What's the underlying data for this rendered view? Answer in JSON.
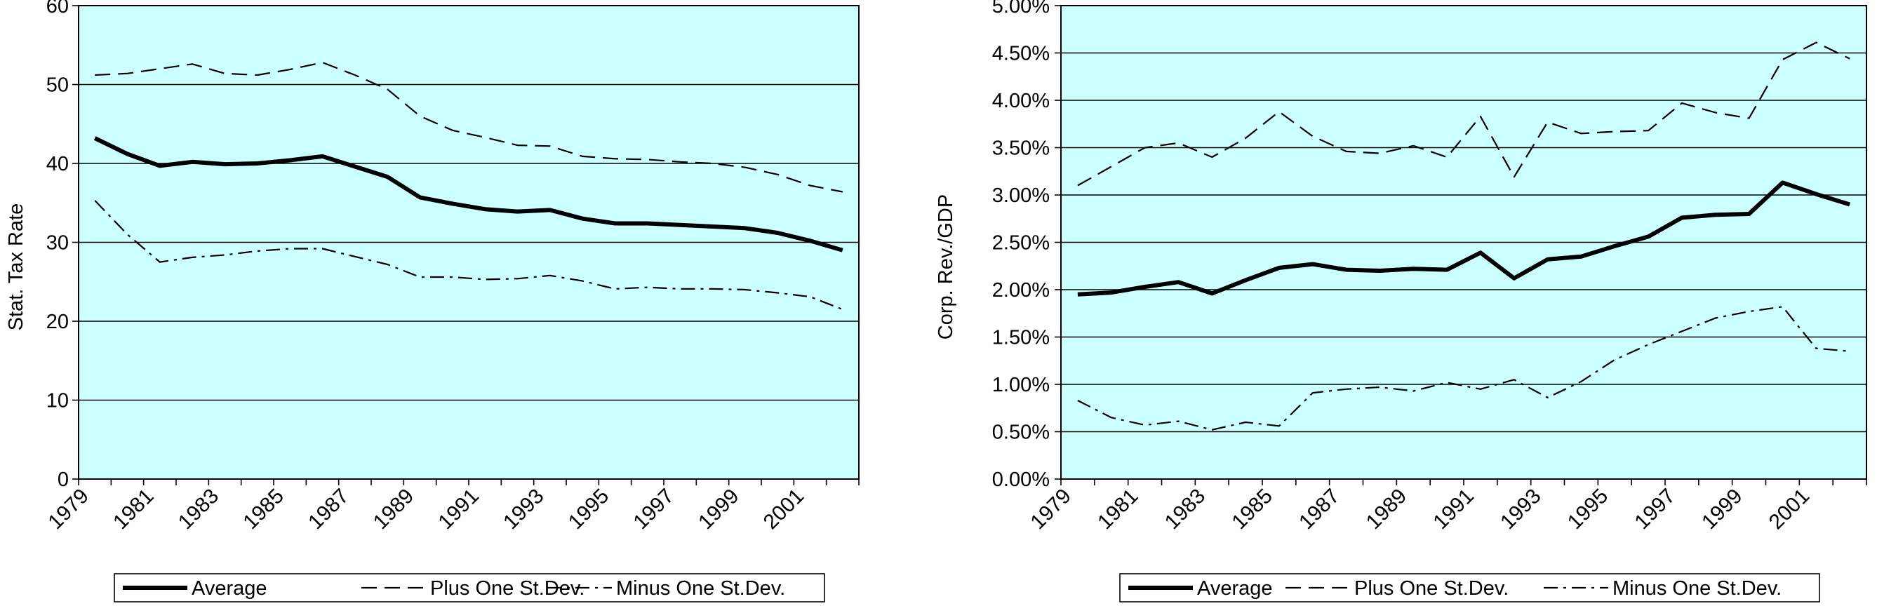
{
  "chart_data": [
    {
      "type": "line",
      "title": "",
      "xlabel": "",
      "ylabel": "Stat. Tax Rate",
      "ylim": [
        0,
        60
      ],
      "yticks": [
        0,
        10,
        20,
        30,
        40,
        50,
        60
      ],
      "ytick_labels": [
        "0",
        "10",
        "20",
        "30",
        "40",
        "50",
        "60"
      ],
      "xlim": [
        1979,
        2003
      ],
      "xticks": [
        1979,
        1981,
        1983,
        1985,
        1987,
        1989,
        1991,
        1993,
        1995,
        1997,
        1999,
        2001
      ],
      "xtick_labels": [
        "1979",
        "1981",
        "1983",
        "1985",
        "1987",
        "1989",
        "1991",
        "1993",
        "1995",
        "1997",
        "1999",
        "2001"
      ],
      "grid": true,
      "plot_bg": "#ccffff",
      "legend_position": "bottom",
      "x": [
        1979.5,
        1980.5,
        1981.5,
        1982.5,
        1983.5,
        1984.5,
        1985.5,
        1986.5,
        1987.5,
        1988.5,
        1989.5,
        1990.5,
        1991.5,
        1992.5,
        1993.5,
        1994.5,
        1995.5,
        1996.5,
        1997.5,
        1998.5,
        1999.5,
        2000.5,
        2001.5,
        2002.5
      ],
      "series": [
        {
          "name": "Average",
          "style": "solid",
          "values": [
            43.2,
            41.2,
            39.7,
            40.2,
            39.9,
            40.0,
            40.4,
            40.9,
            39.6,
            38.3,
            35.7,
            34.9,
            34.2,
            33.9,
            34.1,
            33.0,
            32.4,
            32.4,
            32.2,
            32.0,
            31.8,
            31.2,
            30.2,
            29.0
          ]
        },
        {
          "name": "Plus One St.Dev.",
          "style": "dashed",
          "values": [
            51.2,
            51.4,
            52.0,
            52.6,
            51.4,
            51.2,
            51.9,
            52.8,
            51.2,
            49.4,
            46.0,
            44.2,
            43.3,
            42.3,
            42.2,
            40.9,
            40.6,
            40.5,
            40.2,
            40.0,
            39.5,
            38.6,
            37.2,
            36.4
          ]
        },
        {
          "name": "Minus One St.Dev.",
          "style": "dashdot",
          "values": [
            35.3,
            31.0,
            27.5,
            28.1,
            28.4,
            28.9,
            29.2,
            29.2,
            28.2,
            27.2,
            25.6,
            25.6,
            25.3,
            25.4,
            25.8,
            25.1,
            24.1,
            24.3,
            24.1,
            24.1,
            24.0,
            23.6,
            23.1,
            21.5
          ]
        }
      ]
    },
    {
      "type": "line",
      "title": "",
      "xlabel": "",
      "ylabel": "Corp. Rev./GDP",
      "ylim": [
        0,
        5
      ],
      "yticks": [
        0,
        0.5,
        1,
        1.5,
        2,
        2.5,
        3,
        3.5,
        4,
        4.5,
        5
      ],
      "ytick_labels": [
        "0.00%",
        "0.50%",
        "1.00%",
        "1.50%",
        "2.00%",
        "2.50%",
        "3.00%",
        "3.50%",
        "4.00%",
        "4.50%",
        "5.00%"
      ],
      "xlim": [
        1979,
        2003
      ],
      "xticks": [
        1979,
        1981,
        1983,
        1985,
        1987,
        1989,
        1991,
        1993,
        1995,
        1997,
        1999,
        2001
      ],
      "xtick_labels": [
        "1979",
        "1981",
        "1983",
        "1985",
        "1987",
        "1989",
        "1991",
        "1993",
        "1995",
        "1997",
        "1999",
        "2001"
      ],
      "grid": true,
      "plot_bg": "#ccffff",
      "legend_position": "bottom",
      "x": [
        1979.5,
        1980.5,
        1981.5,
        1982.5,
        1983.5,
        1984.5,
        1985.5,
        1986.5,
        1987.5,
        1988.5,
        1989.5,
        1990.5,
        1991.5,
        1992.5,
        1993.5,
        1994.5,
        1995.5,
        1996.5,
        1997.5,
        1998.5,
        1999.5,
        2000.5,
        2001.5,
        2002.5
      ],
      "series": [
        {
          "name": "Average",
          "style": "solid",
          "values": [
            1.95,
            1.97,
            2.03,
            2.08,
            1.96,
            2.1,
            2.23,
            2.27,
            2.21,
            2.2,
            2.22,
            2.21,
            2.39,
            2.12,
            2.32,
            2.35,
            2.46,
            2.56,
            2.76,
            2.79,
            2.8,
            3.13,
            3.01,
            2.9
          ]
        },
        {
          "name": "Plus One St.Dev.",
          "style": "dashed",
          "values": [
            3.1,
            3.3,
            3.5,
            3.55,
            3.4,
            3.6,
            3.88,
            3.62,
            3.46,
            3.44,
            3.52,
            3.4,
            3.83,
            3.19,
            3.77,
            3.65,
            3.67,
            3.68,
            3.97,
            3.87,
            3.81,
            4.43,
            4.61,
            4.44
          ]
        },
        {
          "name": "Minus One St.Dev.",
          "style": "dashdot",
          "values": [
            0.83,
            0.65,
            0.57,
            0.61,
            0.52,
            0.6,
            0.56,
            0.91,
            0.95,
            0.97,
            0.93,
            1.02,
            0.95,
            1.05,
            0.86,
            1.03,
            1.26,
            1.42,
            1.56,
            1.7,
            1.77,
            1.82,
            1.38,
            1.35
          ]
        }
      ]
    }
  ]
}
